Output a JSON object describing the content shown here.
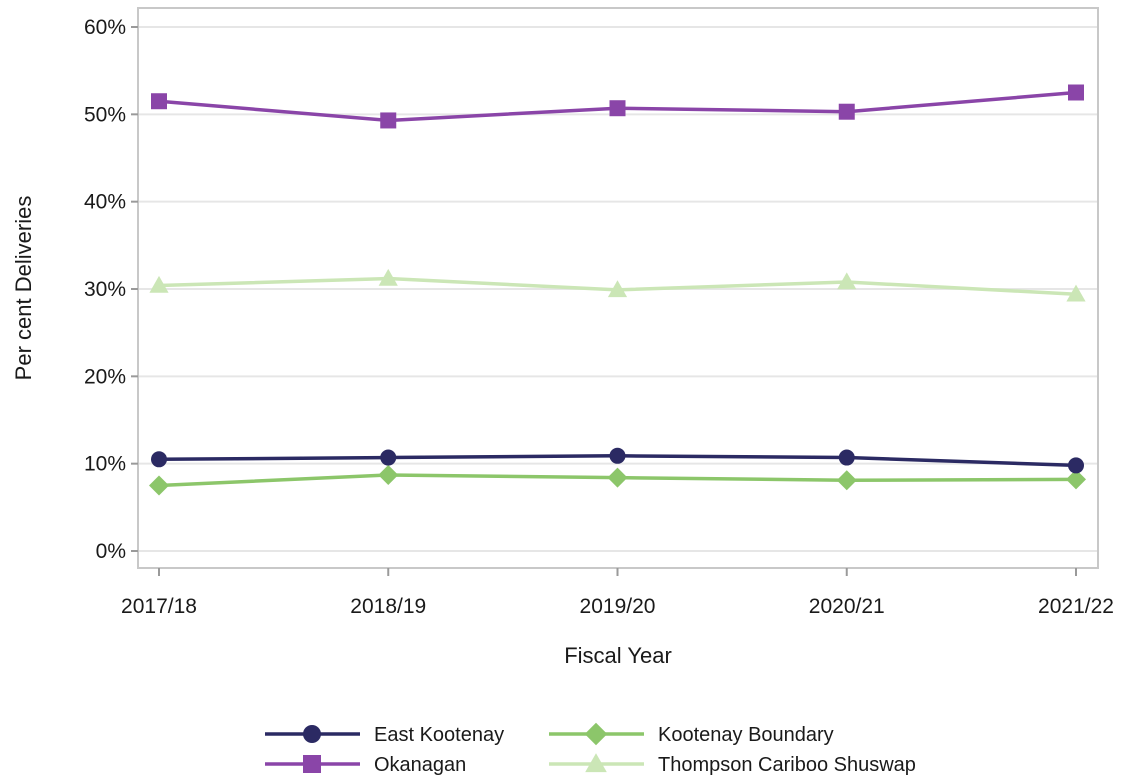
{
  "chart_data": {
    "type": "line",
    "title": "",
    "xlabel": "Fiscal Year",
    "ylabel": "Per cent Deliveries",
    "categories": [
      "2017/18",
      "2018/19",
      "2019/20",
      "2020/21",
      "2021/22"
    ],
    "ylim": [
      0,
      60
    ],
    "yticks": [
      0,
      10,
      20,
      30,
      40,
      50,
      60
    ],
    "ytick_suffix": "%",
    "grid": true,
    "legend_position": "bottom",
    "series": [
      {
        "name": "East Kootenay",
        "values": [
          10.5,
          10.7,
          10.9,
          10.7,
          9.8
        ],
        "color": "#2b2a63",
        "marker": "circle"
      },
      {
        "name": "Kootenay Boundary",
        "values": [
          7.5,
          8.7,
          8.4,
          8.1,
          8.2
        ],
        "color": "#8cc66a",
        "marker": "diamond"
      },
      {
        "name": "Okanagan",
        "values": [
          51.5,
          49.3,
          50.7,
          50.3,
          52.5
        ],
        "color": "#8a45a8",
        "marker": "square"
      },
      {
        "name": "Thompson Cariboo Shuswap",
        "values": [
          30.4,
          31.2,
          29.9,
          30.8,
          29.4
        ],
        "color": "#cbe6b6",
        "marker": "triangle"
      }
    ]
  }
}
